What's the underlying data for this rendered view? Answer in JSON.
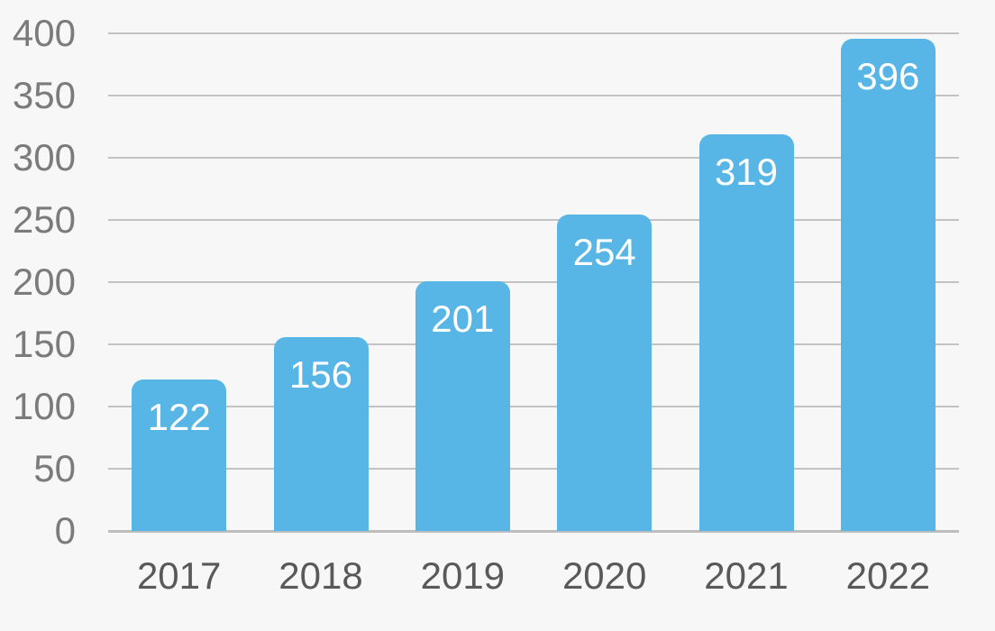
{
  "chart_data": {
    "type": "bar",
    "categories": [
      "2017",
      "2018",
      "2019",
      "2020",
      "2021",
      "2022"
    ],
    "values": [
      122,
      156,
      201,
      254,
      319,
      396
    ],
    "value_labels": [
      "122",
      "156",
      "201",
      "254",
      "319",
      "396"
    ],
    "title": "",
    "xlabel": "",
    "ylabel": "",
    "ylim": [
      0,
      400
    ],
    "yticks": [
      0,
      50,
      100,
      150,
      200,
      250,
      300,
      350,
      400
    ],
    "grid": true,
    "legend": false,
    "colors": {
      "bar": "#57B6E5",
      "value_label": "#FFFFFF",
      "background": "#F7F7F7",
      "gridline": "#C3C3C3",
      "axis_baseline": "#BDBDBD",
      "ytick_label": "#7B7B7B",
      "xtick_label": "#595959"
    }
  }
}
